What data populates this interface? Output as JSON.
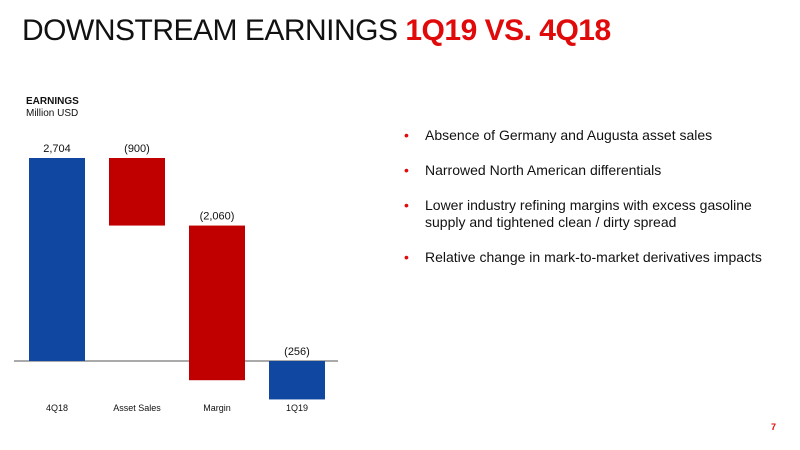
{
  "header": {
    "title_main": "DOWNSTREAM EARNINGS ",
    "title_highlight": "1Q19 VS. 4Q18"
  },
  "chart_data": {
    "type": "waterfall",
    "ylabel": "EARNINGS",
    "yunit": "Million USD",
    "categories": [
      "4Q18",
      "Asset Sales",
      "Margin",
      "1Q19"
    ],
    "values": [
      2704,
      -900,
      -2060,
      -256
    ],
    "data_labels": [
      "2,704",
      "(900)",
      "(2,060)",
      "(256)"
    ],
    "colors": {
      "total": "#0f47a1",
      "decrease": "#c00000"
    },
    "ylim": [
      -300,
      2750
    ],
    "baseline": 0
  },
  "bullets": [
    "Absence of Germany and Augusta asset sales",
    "Narrowed North American differentials",
    "Lower industry refining margins with excess gasoline supply and tightened clean / dirty spread",
    "Relative change in mark-to-market derivatives impacts"
  ],
  "footer": {
    "page_number": "7"
  }
}
